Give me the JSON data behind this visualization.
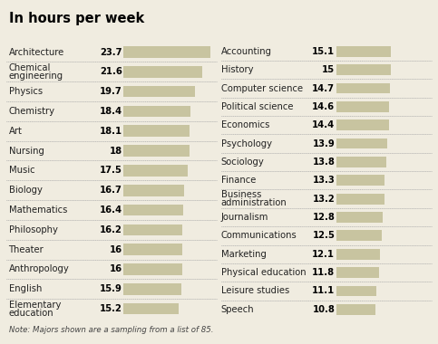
{
  "title": "In hours per week",
  "note": "Note: Majors shown are a sampling from a list of 85.",
  "left_majors": [
    "Architecture",
    "Chemical\nengineering",
    "Physics",
    "Chemistry",
    "Art",
    "Nursing",
    "Music",
    "Biology",
    "Mathematics",
    "Philosophy",
    "Theater",
    "Anthropology",
    "English",
    "Elementary\neducation"
  ],
  "left_values": [
    23.7,
    21.6,
    19.7,
    18.4,
    18.1,
    18.0,
    17.5,
    16.7,
    16.4,
    16.2,
    16.0,
    16.0,
    15.9,
    15.2
  ],
  "right_majors": [
    "Accounting",
    "History",
    "Computer science",
    "Political science",
    "Economics",
    "Psychology",
    "Sociology",
    "Finance",
    "Business\nadministration",
    "Journalism",
    "Communications",
    "Marketing",
    "Physical education",
    "Leisure studies",
    "Speech"
  ],
  "right_values": [
    15.1,
    15.0,
    14.7,
    14.6,
    14.4,
    13.9,
    13.8,
    13.3,
    13.2,
    12.8,
    12.5,
    12.1,
    11.8,
    11.1,
    10.8
  ],
  "bar_color": "#c8c4a0",
  "bar_max": 25.0,
  "bg_color": "#f0ece0",
  "title_color": "#000000",
  "label_color": "#222222",
  "value_color": "#000000",
  "separator_color": "#aaaaaa",
  "title_fontsize": 10.5,
  "label_fontsize": 7.2,
  "value_fontsize": 7.2,
  "note_fontsize": 6.2
}
